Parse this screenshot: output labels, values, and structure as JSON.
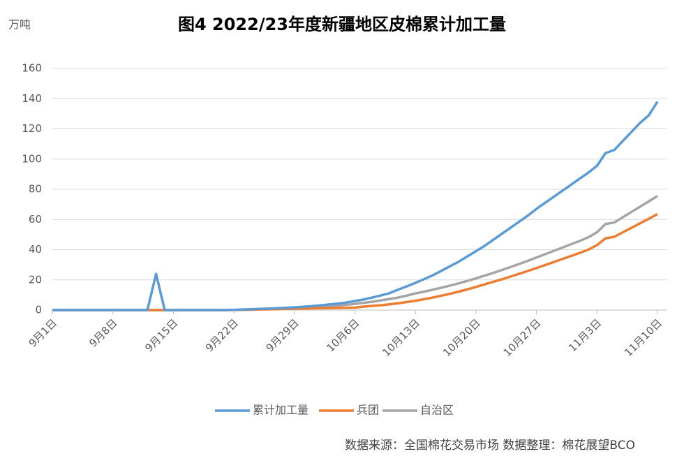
{
  "chart_data": {
    "type": "line",
    "title": "图4  2022/23年度新疆地区皮棉累计加工量",
    "y_label": "万吨",
    "source": "数据来源：全国棉花交易市场    数据整理：棉花展望BCO",
    "categories": [
      "9月1日",
      null,
      null,
      null,
      null,
      null,
      null,
      "9月8日",
      null,
      null,
      null,
      null,
      null,
      null,
      "9月15日",
      null,
      null,
      null,
      null,
      null,
      null,
      "9月22日",
      null,
      null,
      null,
      null,
      null,
      null,
      "9月29日",
      null,
      null,
      null,
      null,
      null,
      null,
      "10月6日",
      null,
      null,
      null,
      null,
      null,
      null,
      "10月13日",
      null,
      null,
      null,
      null,
      null,
      null,
      "10月20日",
      null,
      null,
      null,
      null,
      null,
      null,
      "10月27日",
      null,
      null,
      null,
      null,
      null,
      null,
      "11月3日",
      null,
      null,
      null,
      null,
      null,
      null,
      "11月10日"
    ],
    "series": [
      {
        "name": "累计加工量",
        "color": "#5b9bd5",
        "values": [
          0,
          0,
          0,
          0,
          0,
          0,
          0,
          0,
          0,
          0,
          0,
          0,
          24,
          0,
          0,
          0,
          0,
          0,
          0,
          0,
          0,
          0.2,
          0.4,
          0.6,
          0.8,
          1.0,
          1.2,
          1.5,
          1.8,
          2.2,
          2.6,
          3.1,
          3.7,
          4.3,
          5.0,
          6.0,
          7.0,
          8.3,
          9.7,
          11.2,
          13.5,
          15.7,
          18,
          20.5,
          23,
          26,
          29,
          32,
          35.5,
          39,
          42.5,
          46.5,
          50.5,
          54.5,
          58.5,
          62.5,
          67,
          71,
          75,
          79,
          83,
          87,
          91,
          95.5,
          104,
          106,
          112,
          118,
          124,
          129,
          138
        ]
      },
      {
        "name": "兵团",
        "color": "#ed7d31",
        "values": [
          0,
          0,
          0,
          0,
          0,
          0,
          0,
          0,
          0,
          0,
          0,
          0,
          0,
          0,
          0,
          0,
          0,
          0,
          0,
          0,
          0,
          0.1,
          0.2,
          0.3,
          0.4,
          0.5,
          0.6,
          0.8,
          0.9,
          1.0,
          1.1,
          1.2,
          1.3,
          1.4,
          1.5,
          1.6,
          2.3,
          2.8,
          3.2,
          3.8,
          4.5,
          5.3,
          6.2,
          7.2,
          8.3,
          9.5,
          10.8,
          12.2,
          13.7,
          15.3,
          17,
          18.7,
          20.4,
          22.2,
          24,
          25.9,
          27.8,
          29.8,
          31.8,
          33.8,
          35.8,
          37.8,
          40,
          43,
          47.5,
          48.5,
          51.5,
          54.5,
          57.5,
          60.5,
          63.5
        ]
      },
      {
        "name": "自治区",
        "color": "#a5a5a5",
        "values": [
          0,
          0,
          0,
          0,
          0,
          0,
          0,
          0,
          0,
          0,
          0,
          0,
          0,
          0,
          0,
          0,
          0,
          0,
          0,
          0,
          0,
          0.1,
          0.2,
          0.3,
          0.5,
          0.7,
          0.9,
          1.1,
          1.3,
          1.6,
          1.9,
          2.2,
          2.6,
          3.0,
          3.5,
          4.1,
          4.8,
          5.5,
          6.4,
          7.3,
          8.3,
          9.6,
          11,
          12.2,
          13.5,
          14.8,
          16.2,
          17.7,
          19.3,
          21,
          22.8,
          24.6,
          26.5,
          28.5,
          30.5,
          32.6,
          34.8,
          37,
          39.2,
          41.4,
          43.6,
          45.8,
          48.2,
          51.5,
          57,
          58,
          61.5,
          65,
          68.5,
          72,
          75.5
        ]
      }
    ],
    "ylim": [
      0,
      160
    ],
    "yticks": [
      0,
      20,
      40,
      60,
      80,
      100,
      120,
      140,
      160
    ],
    "grid": true,
    "legend": "bottom"
  }
}
